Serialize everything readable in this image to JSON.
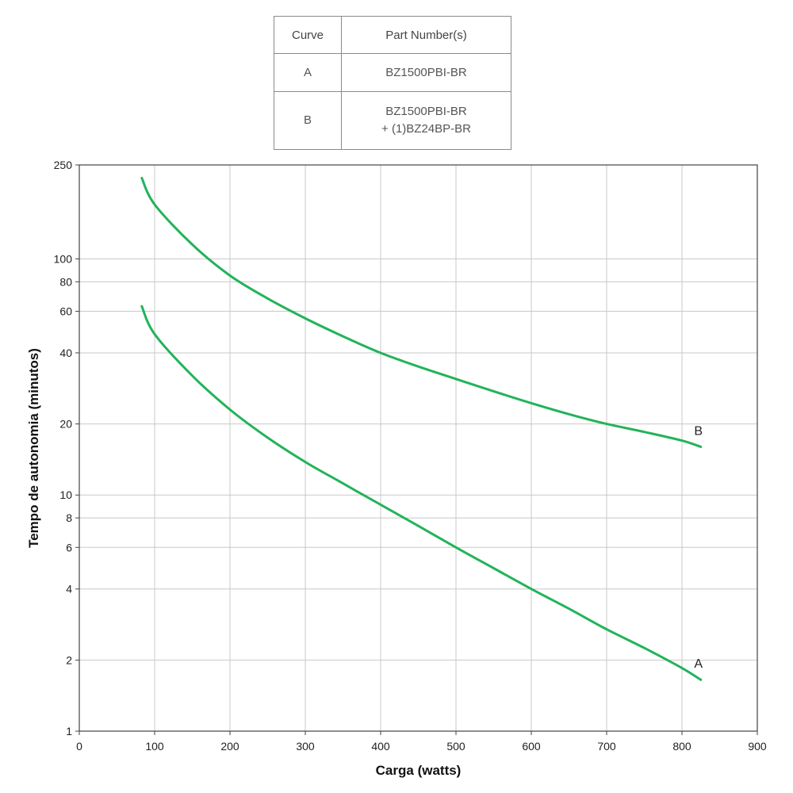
{
  "legend_table": {
    "headers": [
      "Curve",
      "Part Number(s)"
    ],
    "rows": [
      {
        "curve": "A",
        "part_line1": "BZ1500PBI-BR",
        "part_line2": ""
      },
      {
        "curve": "B",
        "part_line1": "BZ1500PBI-BR",
        "part_line2": "+ (1)BZ24BP-BR"
      }
    ]
  },
  "chart_data": {
    "type": "line",
    "xlabel": "Carga (watts)",
    "ylabel": "Tempo de autonomia (minutos)",
    "xlim": [
      0,
      900
    ],
    "ylim": [
      1,
      250
    ],
    "y_scale": "log",
    "grid": true,
    "x_ticks": [
      0,
      100,
      200,
      300,
      400,
      500,
      600,
      700,
      800,
      900
    ],
    "y_ticks": [
      1,
      2,
      4,
      6,
      8,
      10,
      20,
      40,
      60,
      80,
      100,
      250
    ],
    "line_color": "#22b35a",
    "series": [
      {
        "name": "A",
        "x": [
          83,
          100,
          150,
          200,
          250,
          300,
          350,
          400,
          450,
          500,
          550,
          600,
          650,
          700,
          750,
          800,
          825
        ],
        "y": [
          63,
          48,
          32,
          23,
          17.5,
          13.8,
          11.2,
          9.1,
          7.4,
          6.0,
          4.9,
          4.0,
          3.3,
          2.7,
          2.25,
          1.85,
          1.65
        ]
      },
      {
        "name": "B",
        "x": [
          83,
          100,
          150,
          200,
          250,
          300,
          350,
          400,
          450,
          500,
          550,
          600,
          650,
          700,
          750,
          800,
          825
        ],
        "y": [
          220,
          170,
          115,
          85,
          68,
          56,
          47,
          40,
          35,
          31,
          27.5,
          24.5,
          22,
          20,
          18.5,
          17,
          16
        ]
      }
    ]
  }
}
